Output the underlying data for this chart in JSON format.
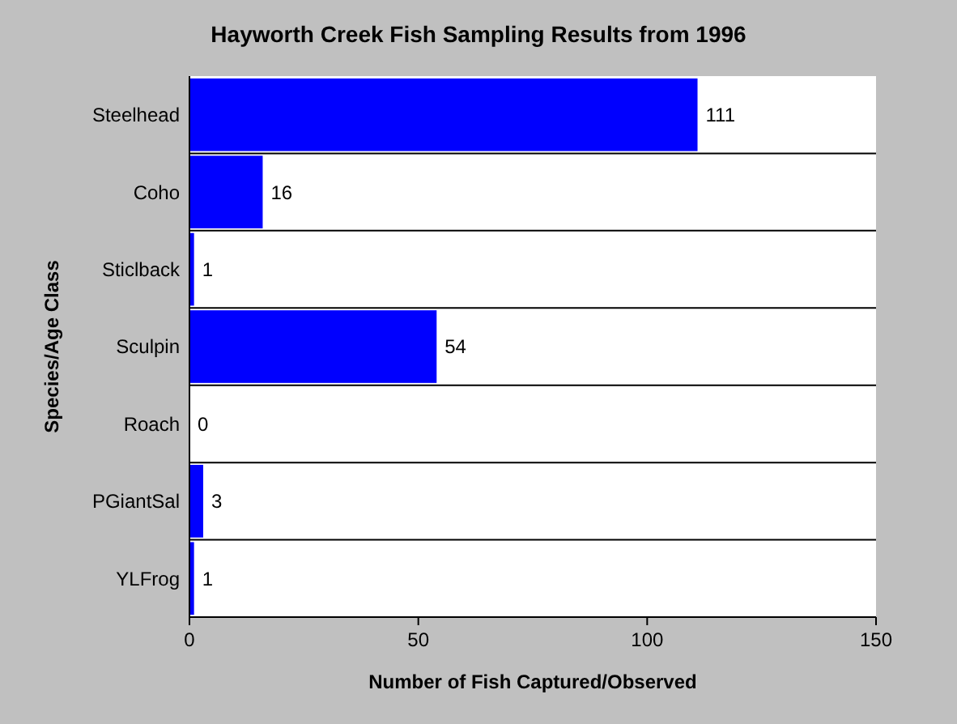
{
  "chart_data": {
    "type": "bar",
    "orientation": "horizontal",
    "title": "Hayworth Creek Fish Sampling Results from 1996",
    "xlabel": "Number of Fish Captured/Observed",
    "ylabel": "Species/Age Class",
    "categories": [
      "Steelhead",
      "Coho",
      "Sticlback",
      "Sculpin",
      "Roach",
      "PGiantSal",
      "YLFrog"
    ],
    "values": [
      111,
      16,
      1,
      54,
      0,
      3,
      1
    ],
    "color": "#0000ff",
    "data_labels": true,
    "xlim": [
      0,
      150
    ],
    "xticks": [
      0,
      50,
      100,
      150
    ],
    "grid": false
  }
}
